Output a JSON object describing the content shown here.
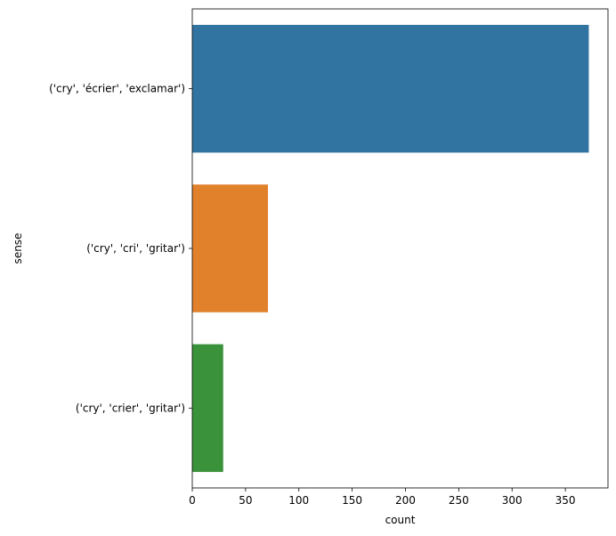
{
  "chart_data": {
    "type": "bar",
    "orientation": "horizontal",
    "categories": [
      "('cry', 'écrier', 'exclamar')",
      "('cry', 'cri', 'gritar')",
      "('cry', 'crier', 'gritar')"
    ],
    "values": [
      372,
      71,
      29
    ],
    "colors": [
      "#3274a1",
      "#e1812c",
      "#3a923a"
    ],
    "xlabel": "count",
    "ylabel": "sense",
    "xlim": [
      0,
      390
    ],
    "xticks": [
      0,
      50,
      100,
      150,
      200,
      250,
      300,
      350
    ],
    "grid": false
  }
}
